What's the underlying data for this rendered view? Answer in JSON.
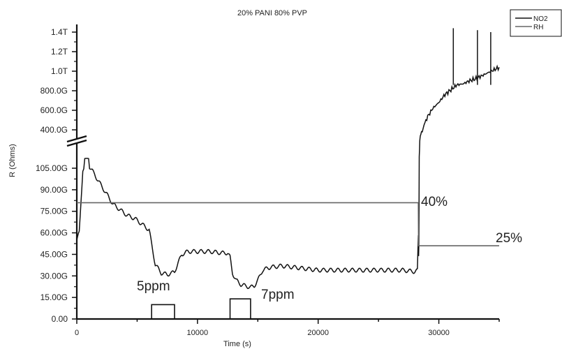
{
  "chart_data": {
    "type": "line",
    "title": "20% PANI 80% PVP",
    "xlabel": "Time (s)",
    "ylabel": "R (Ohms)",
    "xlim": [
      0,
      35000
    ],
    "y_axis_break": "between 105.00G and 400.0G",
    "x_ticks": [
      {
        "value": 0,
        "label": "0"
      },
      {
        "value": 10000,
        "label": "10000"
      },
      {
        "value": 20000,
        "label": "20000"
      },
      {
        "value": 30000,
        "label": "30000"
      }
    ],
    "y_ticks_lower": [
      {
        "value": 0,
        "label": "0.00"
      },
      {
        "value": 15,
        "label": "15.00G"
      },
      {
        "value": 30,
        "label": "30.00G"
      },
      {
        "value": 45,
        "label": "45.00G"
      },
      {
        "value": 60,
        "label": "60.00G"
      },
      {
        "value": 75,
        "label": "75.00G"
      },
      {
        "value": 90,
        "label": "90.00G"
      },
      {
        "value": 105,
        "label": "105.00G"
      }
    ],
    "y_ticks_upper": [
      {
        "value": 400,
        "label": "400.0G"
      },
      {
        "value": 600,
        "label": "600.0G"
      },
      {
        "value": 800,
        "label": "800.0G"
      },
      {
        "value": 1000,
        "label": "1.0T"
      },
      {
        "value": 1200,
        "label": "1.2T"
      },
      {
        "value": 1400,
        "label": "1.4T"
      }
    ],
    "legend": {
      "placement": "top-right",
      "entries": [
        {
          "name": "NO2",
          "color": "#111111"
        },
        {
          "name": "RH",
          "color": "#666666"
        }
      ]
    },
    "annotations": [
      {
        "text": "5ppm",
        "x": 7000,
        "y": 16
      },
      {
        "text": "7ppm",
        "x": 15500,
        "y": 20
      },
      {
        "text": "40%",
        "x": 28900,
        "y": 78
      },
      {
        "text": "25%",
        "x": 35400,
        "y": 52
      }
    ],
    "series": [
      {
        "name": "NO2",
        "color": "#111111",
        "x": [
          0,
          200,
          500,
          900,
          1300,
          1800,
          2400,
          3000,
          3600,
          4200,
          4800,
          5400,
          6000,
          6200,
          6500,
          7000,
          7500,
          7900,
          8100,
          8400,
          8700,
          9200,
          10000,
          11000,
          12000,
          12500,
          12700,
          12900,
          13200,
          13600,
          14000,
          14400,
          14700,
          15000,
          15400,
          16000,
          17000,
          18000,
          19000,
          20000,
          21000,
          22000,
          23000,
          24000,
          25000,
          26000,
          27000,
          28000,
          28300,
          28350,
          28400,
          28450,
          28500,
          28700,
          29000,
          29500,
          30000,
          30500,
          31000,
          31500,
          32000,
          32500,
          33000,
          33500,
          34000,
          34500,
          35000
        ],
        "y": [
          55,
          60,
          104,
          108,
          103,
          96,
          88,
          80,
          76,
          72,
          70,
          66,
          62,
          52,
          38,
          32,
          31,
          32,
          33,
          39,
          45,
          47,
          47,
          47,
          46,
          46,
          43,
          32,
          27,
          24,
          23,
          22,
          23,
          27,
          34,
          36,
          37,
          36,
          35,
          34,
          34,
          34,
          34,
          34,
          34,
          34,
          34,
          33,
          34,
          60,
          200,
          330,
          360,
          420,
          520,
          620,
          680,
          760,
          810,
          860,
          870,
          900,
          920,
          950,
          980,
          1010,
          1040
        ]
      },
      {
        "name": "RH",
        "color": "#666666",
        "x": [
          0,
          28300,
          28320,
          35000
        ],
        "y": [
          81,
          81,
          51,
          51
        ]
      }
    ],
    "gas_pulses": [
      {
        "start": 6200,
        "end": 8100,
        "level": 10
      },
      {
        "start": 12700,
        "end": 14400,
        "level": 14
      }
    ]
  }
}
